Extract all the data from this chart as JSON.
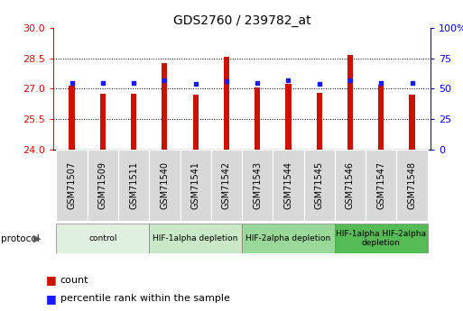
{
  "title": "GDS2760 / 239782_at",
  "samples": [
    "GSM71507",
    "GSM71509",
    "GSM71511",
    "GSM71540",
    "GSM71541",
    "GSM71542",
    "GSM71543",
    "GSM71544",
    "GSM71545",
    "GSM71546",
    "GSM71547",
    "GSM71548"
  ],
  "count_values": [
    27.15,
    26.75,
    26.73,
    28.25,
    26.72,
    28.58,
    27.05,
    27.25,
    26.78,
    28.65,
    27.2,
    26.72
  ],
  "percentile_values": [
    55,
    55,
    55,
    57,
    54,
    56,
    55,
    57,
    54,
    57,
    55,
    55
  ],
  "ylim_left": [
    24,
    30
  ],
  "ylim_right": [
    0,
    100
  ],
  "yticks_left": [
    24,
    25.5,
    27,
    28.5,
    30
  ],
  "yticks_right": [
    0,
    25,
    50,
    75,
    100
  ],
  "bar_color": "#cc1100",
  "dot_color": "#1a1aff",
  "background_color": "#ffffff",
  "protocol_groups": [
    {
      "label": "control",
      "start": 0,
      "end": 2,
      "color": "#e0f0e0"
    },
    {
      "label": "HIF-1alpha depletion",
      "start": 3,
      "end": 5,
      "color": "#c8e8c8"
    },
    {
      "label": "HIF-2alpha depletion",
      "start": 6,
      "end": 8,
      "color": "#99d899"
    },
    {
      "label": "HIF-1alpha HIF-2alpha\ndepletion",
      "start": 9,
      "end": 11,
      "color": "#55bb55"
    }
  ],
  "legend_count_label": "count",
  "legend_percentile_label": "percentile rank within the sample",
  "bar_bottom": 24,
  "bar_width": 0.18
}
